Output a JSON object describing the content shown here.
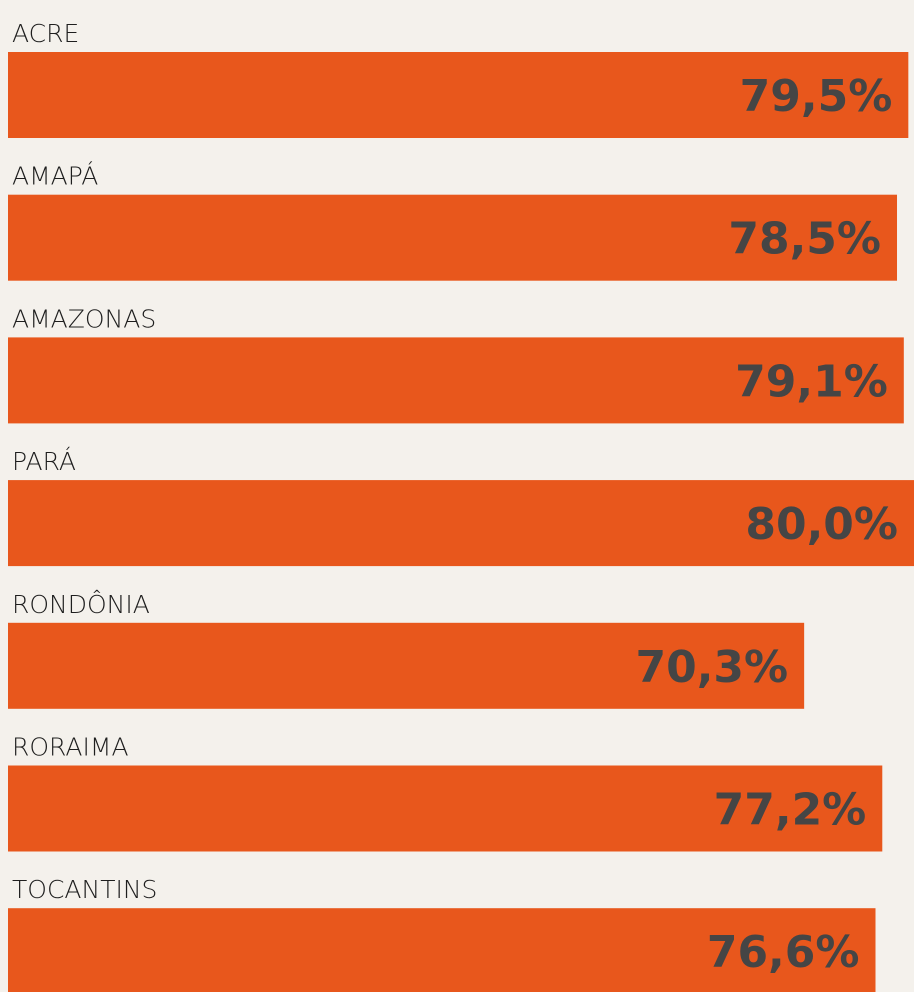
{
  "chart_data": {
    "type": "hbar",
    "categories": [
      "ACRE",
      "AMAPÁ",
      "AMAZONAS",
      "PARÁ",
      "RONDÔNIA",
      "RORAIMA",
      "TOCANTINS"
    ],
    "values": [
      79.5,
      78.5,
      79.1,
      80.0,
      70.3,
      77.2,
      76.6
    ],
    "value_labels": [
      "79,5%",
      "78,5%",
      "79,1%",
      "80,0%",
      "70,3%",
      "77,2%",
      "76,6%"
    ],
    "color": "#e8571c",
    "xlim": [
      0,
      80
    ]
  }
}
